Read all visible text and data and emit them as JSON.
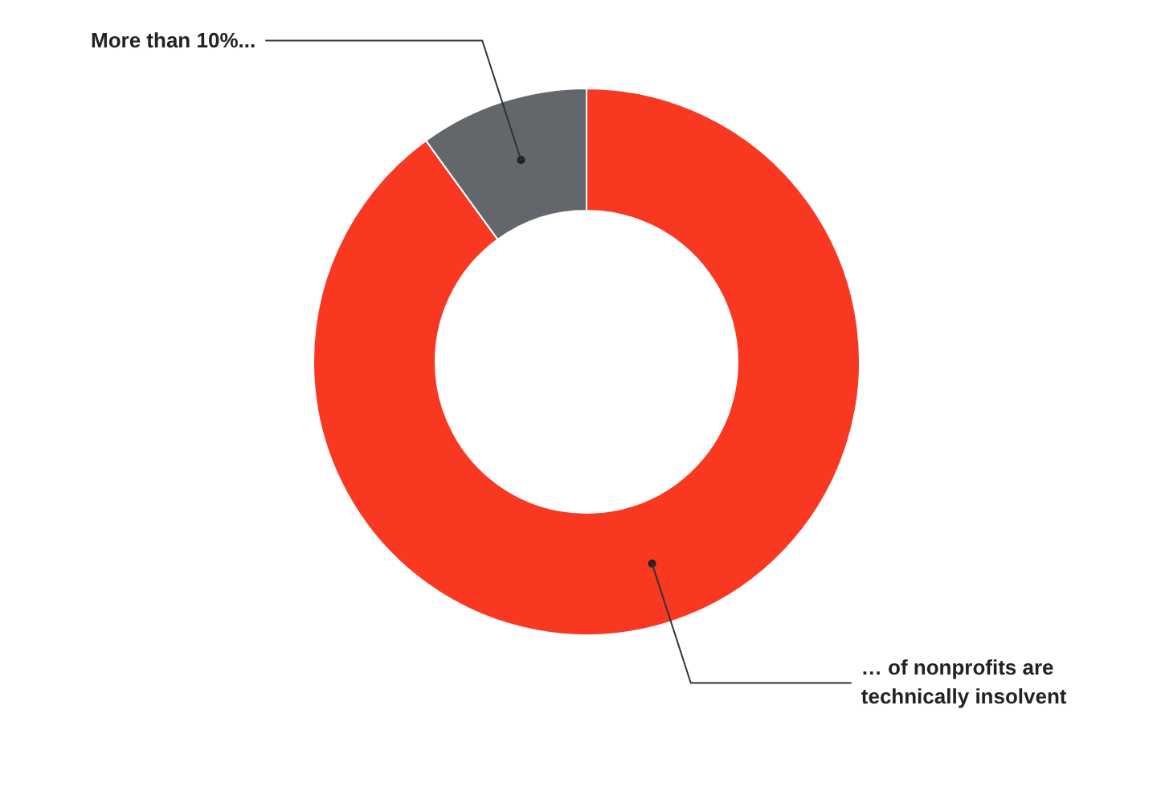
{
  "chart_data": {
    "type": "donut",
    "categories": [
      "… of nonprofits are technically insolvent",
      "More than 10%..."
    ],
    "values": [
      90,
      10
    ],
    "colors": [
      "#f93822",
      "#63666a"
    ]
  }
}
